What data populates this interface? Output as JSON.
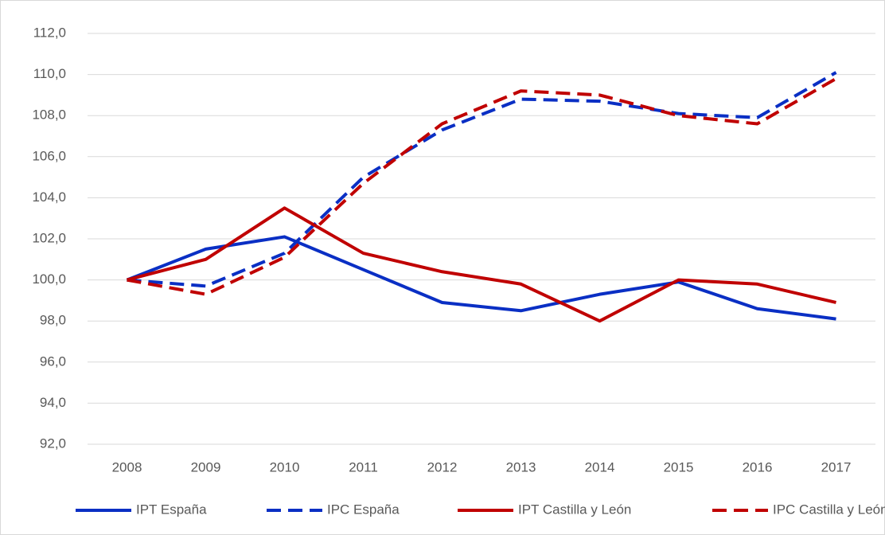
{
  "chart_data": {
    "type": "line",
    "categories": [
      "2008",
      "2009",
      "2010",
      "2011",
      "2012",
      "2013",
      "2014",
      "2015",
      "2016",
      "2017"
    ],
    "series": [
      {
        "name": "IPT España",
        "color": "#0a2fc4",
        "line_style": "solid",
        "values": [
          100.0,
          101.5,
          102.1,
          100.5,
          98.9,
          98.5,
          99.3,
          99.9,
          98.6,
          98.1
        ]
      },
      {
        "name": "IPC España",
        "color": "#0a2fc4",
        "line_style": "dashed",
        "values": [
          100.0,
          99.7,
          101.3,
          105.0,
          107.3,
          108.8,
          108.7,
          108.1,
          107.9,
          110.1
        ]
      },
      {
        "name": "IPT Castilla y León",
        "color": "#c00000",
        "line_style": "solid",
        "values": [
          100.0,
          101.0,
          103.5,
          101.3,
          100.4,
          99.8,
          98.0,
          100.0,
          99.8,
          98.9
        ]
      },
      {
        "name": "IPC Castilla y León",
        "color": "#c00000",
        "line_style": "dashed",
        "values": [
          100.0,
          99.3,
          101.1,
          104.7,
          107.6,
          109.2,
          109.0,
          108.0,
          107.6,
          109.8
        ]
      }
    ],
    "ylim": [
      92,
      112
    ],
    "yticks": [
      {
        "value": 92,
        "label": "92,0"
      },
      {
        "value": 94,
        "label": "94,0"
      },
      {
        "value": 96,
        "label": "96,0"
      },
      {
        "value": 98,
        "label": "98,0"
      },
      {
        "value": 100,
        "label": "100,0"
      },
      {
        "value": 102,
        "label": "102,0"
      },
      {
        "value": 104,
        "label": "104,0"
      },
      {
        "value": 106,
        "label": "106,0"
      },
      {
        "value": 108,
        "label": "108,0"
      },
      {
        "value": 110,
        "label": "110,0"
      },
      {
        "value": 112,
        "label": "112,0"
      }
    ],
    "grid": true,
    "legend": "bottom"
  }
}
